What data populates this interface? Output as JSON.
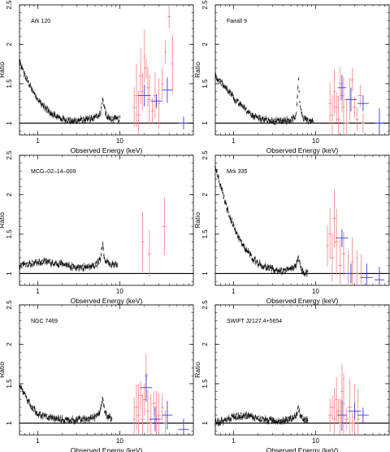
{
  "figure": {
    "panels": [
      {
        "label": "Ark 120",
        "ylabel": "Ratio",
        "xlabel": "Observed Energy (keV)"
      },
      {
        "label": "Fairall 9",
        "ylabel": "Ratio",
        "xlabel": "Observed Energy (keV)"
      },
      {
        "label": "MCG–02–14–009",
        "ylabel": "Ratio",
        "xlabel": "Observed Energy (keV)"
      },
      {
        "label": "Mrk 335",
        "ylabel": "Ratio",
        "xlabel": "Observed Energy (keV)"
      },
      {
        "label": "NGC 7469",
        "ylabel": "Ratio",
        "xlabel": "Observed Energy (keV)"
      },
      {
        "label": "SWIFT J2127.4+5654",
        "ylabel": "Ratio",
        "xlabel": "Observed Energy (keV)"
      }
    ],
    "colors": {
      "soft": "#000000",
      "fpma": "#f08080",
      "bat": "#3a3ae0",
      "axis": "#000000"
    }
  },
  "chart_data": [
    {
      "type": "scatter",
      "title": "Ark 120",
      "xlabel": "Observed Energy (keV)",
      "ylabel": "Ratio",
      "xscale": "log",
      "xlim": [
        0.6,
        79
      ],
      "ylim": [
        0.85,
        2.5
      ],
      "xticks": [
        1,
        10
      ],
      "yticks": [
        1,
        1.5,
        2,
        2.5
      ],
      "unity_line": 1,
      "soft_curve": [
        [
          0.6,
          1.78
        ],
        [
          0.7,
          1.6
        ],
        [
          0.85,
          1.42
        ],
        [
          1.0,
          1.3
        ],
        [
          1.3,
          1.17
        ],
        [
          1.7,
          1.08
        ],
        [
          2.2,
          1.04
        ],
        [
          3.0,
          1.03
        ],
        [
          4.0,
          1.05
        ],
        [
          5.0,
          1.07
        ],
        [
          5.8,
          1.12
        ],
        [
          6.2,
          1.3
        ],
        [
          6.5,
          1.2
        ],
        [
          7.0,
          1.07
        ],
        [
          8.0,
          1.05
        ],
        [
          10,
          1.05
        ]
      ],
      "series": [
        {
          "values": [
            [
              15,
              1.2
            ],
            [
              16,
              1.35
            ],
            [
              17,
              1.1
            ],
            [
              18,
              1.6
            ],
            [
              19,
              1.4
            ],
            [
              20,
              1.85
            ],
            [
              21,
              1.7
            ],
            [
              22,
              1.45
            ],
            [
              23,
              1.3
            ],
            [
              25,
              1.15
            ],
            [
              27,
              1.35
            ],
            [
              30,
              1.25
            ],
            [
              33,
              1.5
            ],
            [
              36,
              1.9
            ],
            [
              40,
              2.35
            ],
            [
              44,
              1.75
            ]
          ]
        },
        {
          "values": [
            [
              20,
              1.35
            ],
            [
              28,
              1.28
            ],
            [
              38,
              1.42
            ],
            [
              60,
              1.0
            ]
          ]
        }
      ]
    },
    {
      "type": "scatter",
      "title": "Fairall 9",
      "xlabel": "Observed Energy (keV)",
      "ylabel": "Ratio",
      "xscale": "log",
      "xlim": [
        0.6,
        79
      ],
      "ylim": [
        0.85,
        2.5
      ],
      "xticks": [
        1,
        10
      ],
      "yticks": [
        1,
        1.5,
        2,
        2.5
      ],
      "unity_line": 1,
      "soft_curve": [
        [
          0.6,
          1.6
        ],
        [
          0.7,
          1.52
        ],
        [
          0.85,
          1.42
        ],
        [
          1.0,
          1.32
        ],
        [
          1.3,
          1.2
        ],
        [
          1.7,
          1.1
        ],
        [
          2.2,
          1.05
        ],
        [
          3.0,
          1.02
        ],
        [
          4.0,
          1.02
        ],
        [
          5.0,
          1.04
        ],
        [
          5.8,
          1.08
        ],
        [
          6.2,
          1.55
        ],
        [
          6.5,
          1.2
        ],
        [
          7.0,
          1.05
        ],
        [
          8.0,
          1.03
        ],
        [
          9.5,
          1.05
        ]
      ],
      "series": [
        {
          "values": [
            [
              15,
              1.25
            ],
            [
              16,
              1.1
            ],
            [
              17,
              1.4
            ],
            [
              18,
              1.2
            ],
            [
              19,
              1.05
            ],
            [
              20,
              1.5
            ],
            [
              21,
              1.35
            ],
            [
              22,
              1.2
            ],
            [
              24,
              1.0
            ],
            [
              26,
              1.3
            ],
            [
              28,
              1.55
            ],
            [
              30,
              1.2
            ],
            [
              32,
              1.05
            ],
            [
              35,
              1.35
            ],
            [
              38,
              1.0
            ]
          ]
        },
        {
          "values": [
            [
              21,
              1.45
            ],
            [
              27,
              1.3
            ],
            [
              38,
              1.25
            ],
            [
              60,
              1.0
            ]
          ]
        }
      ]
    },
    {
      "type": "scatter",
      "title": "MCG–02–14–009",
      "xlabel": "Observed Energy (keV)",
      "ylabel": "Ratio",
      "xscale": "log",
      "xlim": [
        0.6,
        79
      ],
      "ylim": [
        0.85,
        2.5
      ],
      "xticks": [
        1,
        10
      ],
      "yticks": [
        1,
        1.5,
        2,
        2.5
      ],
      "unity_line": 1,
      "soft_curve": [
        [
          0.6,
          1.1
        ],
        [
          0.7,
          1.12
        ],
        [
          0.85,
          1.13
        ],
        [
          1.0,
          1.14
        ],
        [
          1.3,
          1.15
        ],
        [
          1.7,
          1.13
        ],
        [
          2.2,
          1.1
        ],
        [
          3.0,
          1.08
        ],
        [
          4.0,
          1.08
        ],
        [
          5.0,
          1.1
        ],
        [
          5.8,
          1.18
        ],
        [
          6.2,
          1.4
        ],
        [
          6.5,
          1.2
        ],
        [
          7.0,
          1.15
        ],
        [
          8.0,
          1.1
        ],
        [
          9.5,
          1.12
        ]
      ],
      "series": [
        {
          "values": [
            [
              19,
              1.4
            ],
            [
              23,
              1.25
            ],
            [
              35,
              1.6
            ]
          ]
        },
        {
          "values": []
        }
      ]
    },
    {
      "type": "scatter",
      "title": "Mrk 335",
      "xlabel": "Observed Energy (keV)",
      "ylabel": "Ratio",
      "xscale": "log",
      "xlim": [
        0.6,
        79
      ],
      "ylim": [
        0.85,
        2.5
      ],
      "xticks": [
        1,
        10
      ],
      "yticks": [
        1,
        1.5,
        2,
        2.5
      ],
      "unity_line": 1,
      "soft_curve": [
        [
          0.6,
          2.35
        ],
        [
          0.7,
          2.1
        ],
        [
          0.85,
          1.8
        ],
        [
          1.0,
          1.6
        ],
        [
          1.3,
          1.35
        ],
        [
          1.7,
          1.2
        ],
        [
          2.2,
          1.1
        ],
        [
          3.0,
          1.05
        ],
        [
          4.0,
          1.03
        ],
        [
          5.0,
          1.05
        ],
        [
          5.8,
          1.1
        ],
        [
          6.2,
          1.2
        ],
        [
          6.5,
          1.08
        ],
        [
          7.0,
          1.02
        ],
        [
          8.0,
          1.0
        ]
      ],
      "series": [
        {
          "values": [
            [
              14,
              1.35
            ],
            [
              15,
              1.5
            ],
            [
              16,
              1.2
            ],
            [
              17,
              1.7
            ],
            [
              18,
              1.4
            ],
            [
              20,
              1.1
            ],
            [
              22,
              1.25
            ],
            [
              25,
              1.0
            ],
            [
              28,
              1.15
            ],
            [
              32,
              1.0
            ],
            [
              36,
              0.95
            ]
          ]
        },
        {
          "values": [
            [
              21,
              1.45
            ],
            [
              27,
              1.0
            ],
            [
              42,
              0.95
            ],
            [
              60,
              0.92
            ]
          ]
        }
      ]
    },
    {
      "type": "scatter",
      "title": "NGC 7469",
      "xlabel": "Observed Energy (keV)",
      "ylabel": "Ratio",
      "xscale": "log",
      "xlim": [
        0.6,
        79
      ],
      "ylim": [
        0.85,
        2.5
      ],
      "xticks": [
        1,
        10
      ],
      "yticks": [
        1,
        1.5,
        2,
        2.5
      ],
      "unity_line": 1,
      "soft_curve": [
        [
          0.6,
          1.5
        ],
        [
          0.7,
          1.35
        ],
        [
          0.85,
          1.2
        ],
        [
          1.0,
          1.12
        ],
        [
          1.3,
          1.08
        ],
        [
          1.7,
          1.05
        ],
        [
          2.2,
          1.04
        ],
        [
          3.0,
          1.04
        ],
        [
          4.0,
          1.05
        ],
        [
          5.0,
          1.08
        ],
        [
          5.8,
          1.15
        ],
        [
          6.2,
          1.35
        ],
        [
          6.5,
          1.18
        ],
        [
          7.0,
          1.08
        ],
        [
          8.0,
          1.05
        ]
      ],
      "series": [
        {
          "values": [
            [
              15,
              1.05
            ],
            [
              16,
              1.2
            ],
            [
              17,
              1.1
            ],
            [
              18,
              1.35
            ],
            [
              19,
              1.05
            ],
            [
              20,
              1.3
            ],
            [
              21,
              1.6
            ],
            [
              22,
              1.15
            ],
            [
              24,
              1.0
            ],
            [
              26,
              1.25
            ],
            [
              28,
              1.05
            ],
            [
              30,
              1.1
            ],
            [
              33,
              1.2
            ],
            [
              36,
              1.0
            ]
          ]
        },
        {
          "values": [
            [
              21,
              1.45
            ],
            [
              27,
              1.05
            ],
            [
              38,
              1.1
            ],
            [
              60,
              0.92
            ]
          ]
        }
      ]
    },
    {
      "type": "scatter",
      "title": "SWIFT J2127.4+5654",
      "xlabel": "Observed Energy (keV)",
      "ylabel": "Ratio",
      "xscale": "log",
      "xlim": [
        0.6,
        79
      ],
      "ylim": [
        0.85,
        2.5
      ],
      "xticks": [
        1,
        10
      ],
      "yticks": [
        1,
        1.5,
        2,
        2.5
      ],
      "unity_line": 1,
      "soft_curve": [
        [
          0.6,
          1.0
        ],
        [
          0.7,
          1.02
        ],
        [
          0.85,
          1.05
        ],
        [
          1.0,
          1.08
        ],
        [
          1.3,
          1.1
        ],
        [
          1.7,
          1.08
        ],
        [
          2.2,
          1.05
        ],
        [
          3.0,
          1.03
        ],
        [
          4.0,
          1.03
        ],
        [
          5.0,
          1.05
        ],
        [
          5.8,
          1.1
        ],
        [
          6.2,
          1.2
        ],
        [
          6.5,
          1.1
        ],
        [
          7.0,
          1.05
        ],
        [
          8.0,
          1.03
        ]
      ],
      "series": [
        {
          "values": [
            [
              15,
              1.1
            ],
            [
              16,
              1.2
            ],
            [
              17,
              1.05
            ],
            [
              18,
              1.3
            ],
            [
              19,
              1.15
            ],
            [
              20,
              1.0
            ],
            [
              21,
              1.4
            ],
            [
              22,
              1.25
            ],
            [
              24,
              1.05
            ],
            [
              26,
              1.2
            ],
            [
              28,
              1.0
            ],
            [
              30,
              1.15
            ],
            [
              33,
              1.05
            ]
          ]
        },
        {
          "values": [
            [
              21,
              1.1
            ],
            [
              30,
              1.15
            ],
            [
              38,
              1.1
            ]
          ]
        }
      ]
    }
  ]
}
